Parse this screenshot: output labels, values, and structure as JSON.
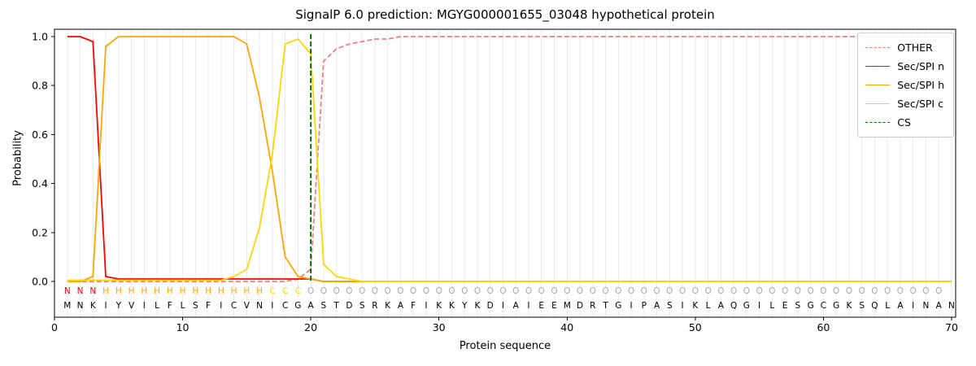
{
  "title": "SignalP 6.0 prediction: MGYG000001655_03048 hypothetical protein",
  "legend": [
    {
      "label": "OTHER",
      "color": "#f08080",
      "dash": true
    },
    {
      "label": "Sec/SPI n",
      "color": "#ff0000",
      "dash": false
    },
    {
      "label": "Sec/SPI h",
      "color": "#ffa500",
      "dash": false
    },
    {
      "label": "Sec/SPI c",
      "color": "#ffd700",
      "dash": false
    },
    {
      "label": "CS",
      "color": "#006400",
      "dash": true
    }
  ],
  "chart_data": {
    "type": "line",
    "title": "SignalP 6.0 prediction: MGYG000001655_03048 hypothetical protein",
    "xlabel": "Protein sequence",
    "ylabel": "Probability",
    "xlim": [
      0,
      70.32
    ],
    "ylim": [
      -0.146,
      1.03
    ],
    "x_ticks": [
      0,
      10,
      20,
      30,
      40,
      50,
      60,
      70
    ],
    "y_ticks": [
      0,
      0.2,
      0.4,
      0.6,
      0.8,
      1.0
    ],
    "grid": true,
    "grid_color": "#ebebeb",
    "legend_position": "upper right",
    "cs_position": 20,
    "cs_color": "#006400",
    "sequence": "MNKIYVILFLSFICVNICGASTDSRKAFIKKYKDIAIEEMDRTGIPASIKLAQGILESGCGKSQLAINAN",
    "region_labels": "NNNHHHHHHHHHHHHHCCCOOOOOOOOOOOOOOOOOOOOOOOOOOOOOOOOOOOOOOOOOOOOOOOOOO",
    "region_colors": {
      "N": "#ff0000",
      "H": "#ffa500",
      "C": "#ffd700",
      "O": "#a9a9a9"
    },
    "series": [
      {
        "name": "OTHER",
        "color": "#f08080",
        "dash": true,
        "values": [
          0,
          0,
          0,
          0,
          0,
          0,
          0,
          0,
          0,
          0,
          0,
          0,
          0,
          0,
          0,
          0,
          0,
          0,
          0.01,
          0.05,
          0.9,
          0.95,
          0.97,
          0.98,
          0.99,
          0.99,
          1,
          1,
          1,
          1,
          1,
          1,
          1,
          1,
          1,
          1,
          1,
          1,
          1,
          1,
          1,
          1,
          1,
          1,
          1,
          1,
          1,
          1,
          1,
          1,
          1,
          1,
          1,
          1,
          1,
          1,
          1,
          1,
          1,
          1,
          1,
          1,
          1,
          1,
          1,
          1,
          1,
          1,
          1,
          1
        ]
      },
      {
        "name": "Sec/SPI n",
        "color": "#ff0000",
        "dash": false,
        "values": [
          1,
          1,
          0.98,
          0.02,
          0.01,
          0.01,
          0.01,
          0.01,
          0.01,
          0.01,
          0.01,
          0.01,
          0.01,
          0.01,
          0.01,
          0.01,
          0.01,
          0.01,
          0.01,
          0.01,
          0,
          0,
          0,
          0,
          0,
          0,
          0,
          0,
          0,
          0,
          0,
          0,
          0,
          0,
          0,
          0,
          0,
          0,
          0,
          0,
          0,
          0,
          0,
          0,
          0,
          0,
          0,
          0,
          0,
          0,
          0,
          0,
          0,
          0,
          0,
          0,
          0,
          0,
          0,
          0,
          0,
          0,
          0,
          0,
          0,
          0,
          0,
          0,
          0,
          0
        ]
      },
      {
        "name": "Sec/SPI h",
        "color": "#ffa500",
        "dash": false,
        "values": [
          0,
          0,
          0.02,
          0.96,
          1,
          1,
          1,
          1,
          1,
          1,
          1,
          1,
          1,
          1,
          0.97,
          0.75,
          0.45,
          0.1,
          0.02,
          0.01,
          0,
          0,
          0,
          0,
          0,
          0,
          0,
          0,
          0,
          0,
          0,
          0,
          0,
          0,
          0,
          0,
          0,
          0,
          0,
          0,
          0,
          0,
          0,
          0,
          0,
          0,
          0,
          0,
          0,
          0,
          0,
          0,
          0,
          0,
          0,
          0,
          0,
          0,
          0,
          0,
          0,
          0,
          0,
          0,
          0,
          0,
          0,
          0,
          0,
          0
        ]
      },
      {
        "name": "Sec/SPI c",
        "color": "#ffd700",
        "dash": false,
        "values": [
          0.005,
          0.005,
          0.005,
          0.005,
          0.005,
          0.005,
          0.005,
          0.005,
          0.005,
          0.005,
          0.005,
          0.005,
          0.005,
          0.02,
          0.05,
          0.22,
          0.52,
          0.97,
          0.99,
          0.93,
          0.07,
          0.02,
          0.01,
          0,
          0,
          0,
          0,
          0,
          0,
          0,
          0,
          0,
          0,
          0,
          0,
          0,
          0,
          0,
          0,
          0,
          0,
          0,
          0,
          0,
          0,
          0,
          0,
          0,
          0,
          0,
          0,
          0,
          0,
          0,
          0,
          0,
          0,
          0,
          0,
          0,
          0,
          0,
          0,
          0,
          0,
          0,
          0,
          0,
          0,
          0
        ]
      }
    ]
  }
}
